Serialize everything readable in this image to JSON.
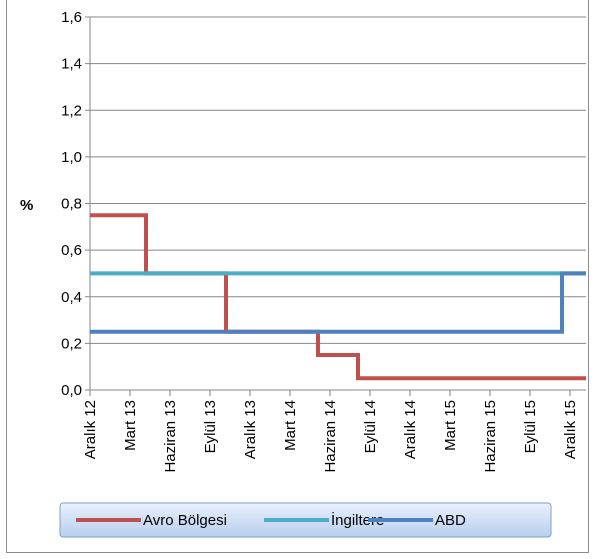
{
  "chart_data": {
    "type": "line",
    "step": true,
    "title": "",
    "ylabel": "%",
    "xlabel": "",
    "ylim": [
      0,
      1.6
    ],
    "y_ticks": [
      "0,0",
      "0,2",
      "0,4",
      "0,6",
      "0,8",
      "1,0",
      "1,2",
      "1,4",
      "1,6"
    ],
    "categories": [
      "Aralık 12",
      "Mart 13",
      "Haziran 13",
      "Eylül 13",
      "Aralık 13",
      "Mart 14",
      "Haziran 14",
      "Eylül 14",
      "Aralık 14",
      "Mart 15",
      "Haziran 15",
      "Eylül 15",
      "Aralık 15"
    ],
    "grid": "horizontal",
    "legend_position": "bottom",
    "series": [
      {
        "name": "Avro Bölgesi",
        "color": "#c0504d",
        "points": [
          {
            "x": 0.0,
            "y": 0.75
          },
          {
            "x": 1.4,
            "y": 0.75
          },
          {
            "x": 1.4,
            "y": 0.5
          },
          {
            "x": 3.4,
            "y": 0.5
          },
          {
            "x": 3.4,
            "y": 0.25
          },
          {
            "x": 5.7,
            "y": 0.25
          },
          {
            "x": 5.7,
            "y": 0.15
          },
          {
            "x": 6.7,
            "y": 0.15
          },
          {
            "x": 6.7,
            "y": 0.05
          },
          {
            "x": 12.4,
            "y": 0.05
          }
        ]
      },
      {
        "name": "İngiltere",
        "color": "#4bacc6",
        "points": [
          {
            "x": 0.0,
            "y": 0.5
          },
          {
            "x": 12.4,
            "y": 0.5
          }
        ]
      },
      {
        "name": "ABD",
        "color": "#4f81bd",
        "points": [
          {
            "x": 0.0,
            "y": 0.25
          },
          {
            "x": 11.8,
            "y": 0.25
          },
          {
            "x": 11.8,
            "y": 0.5
          },
          {
            "x": 12.4,
            "y": 0.5
          }
        ]
      }
    ]
  }
}
